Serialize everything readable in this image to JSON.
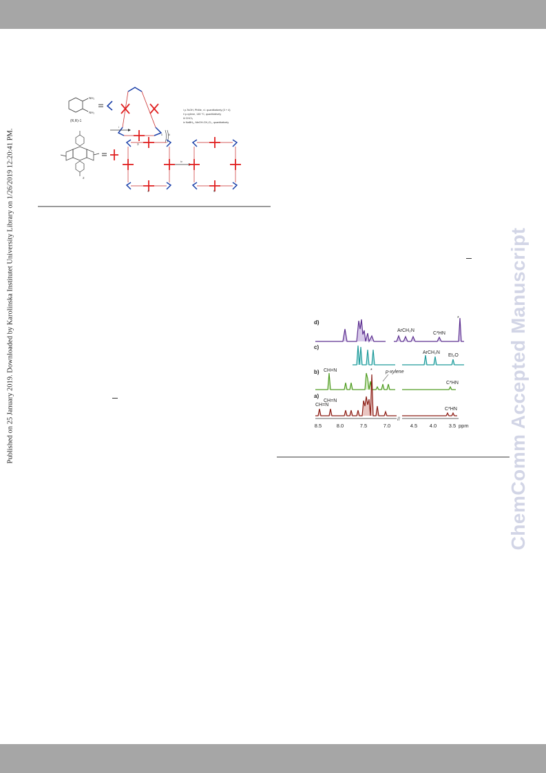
{
  "sidebar_text": "Published on 25 January 2019. Downloaded by Karolinska Institutet University Library on 1/26/2019 12:20:41 PM.",
  "watermark": "ChemComm Accepted Manuscript",
  "scheme": {
    "label_rr1": "(R,R)-1",
    "label_2": "2",
    "label_3": "3",
    "label_4": "4",
    "label_5": "5",
    "label_i": "i",
    "label_ii": "ii",
    "label_iii": "iii",
    "label_iv": "iv",
    "nh2_top": "NH₂",
    "nh2_bottom": "NH₂",
    "conditions": [
      "i   p-TsOH, PhMe, r.t. quantitatively (3 + 4)",
      "ii   p-xylene, 145 °C, quantitatively",
      "iii  CHCl₃",
      "iv  NaBH₄, MeOH-CH₂Cl₂, quantitatively"
    ]
  },
  "spectrum": {
    "traces": [
      {
        "label": "d)",
        "color": "#5b2d8f"
      },
      {
        "label": "c)",
        "color": "#1f9a9a"
      },
      {
        "label": "b)",
        "color": "#4d9a1f"
      },
      {
        "label": "a)",
        "color": "#8a1c14"
      }
    ],
    "annotations": {
      "d_arch2n": "ArCH₂N",
      "d_chn": "C*HN",
      "d_star": "*",
      "c_arch2n": "ArCH₂N",
      "c_et2o": "Et₂O",
      "b_ch_n": "CH=N",
      "b_pxylene": "p-xylene",
      "b_chn": "C*HN",
      "b_star": "*",
      "a_ch_n": "CH=N",
      "a_ch_n2": "CH=N",
      "a_chn": "C*HN"
    },
    "axis_ticks": [
      "8.5",
      "8.0",
      "7.5",
      "7.0",
      "4.5",
      "4.0",
      "3.5"
    ],
    "axis_unit": "ppm"
  }
}
